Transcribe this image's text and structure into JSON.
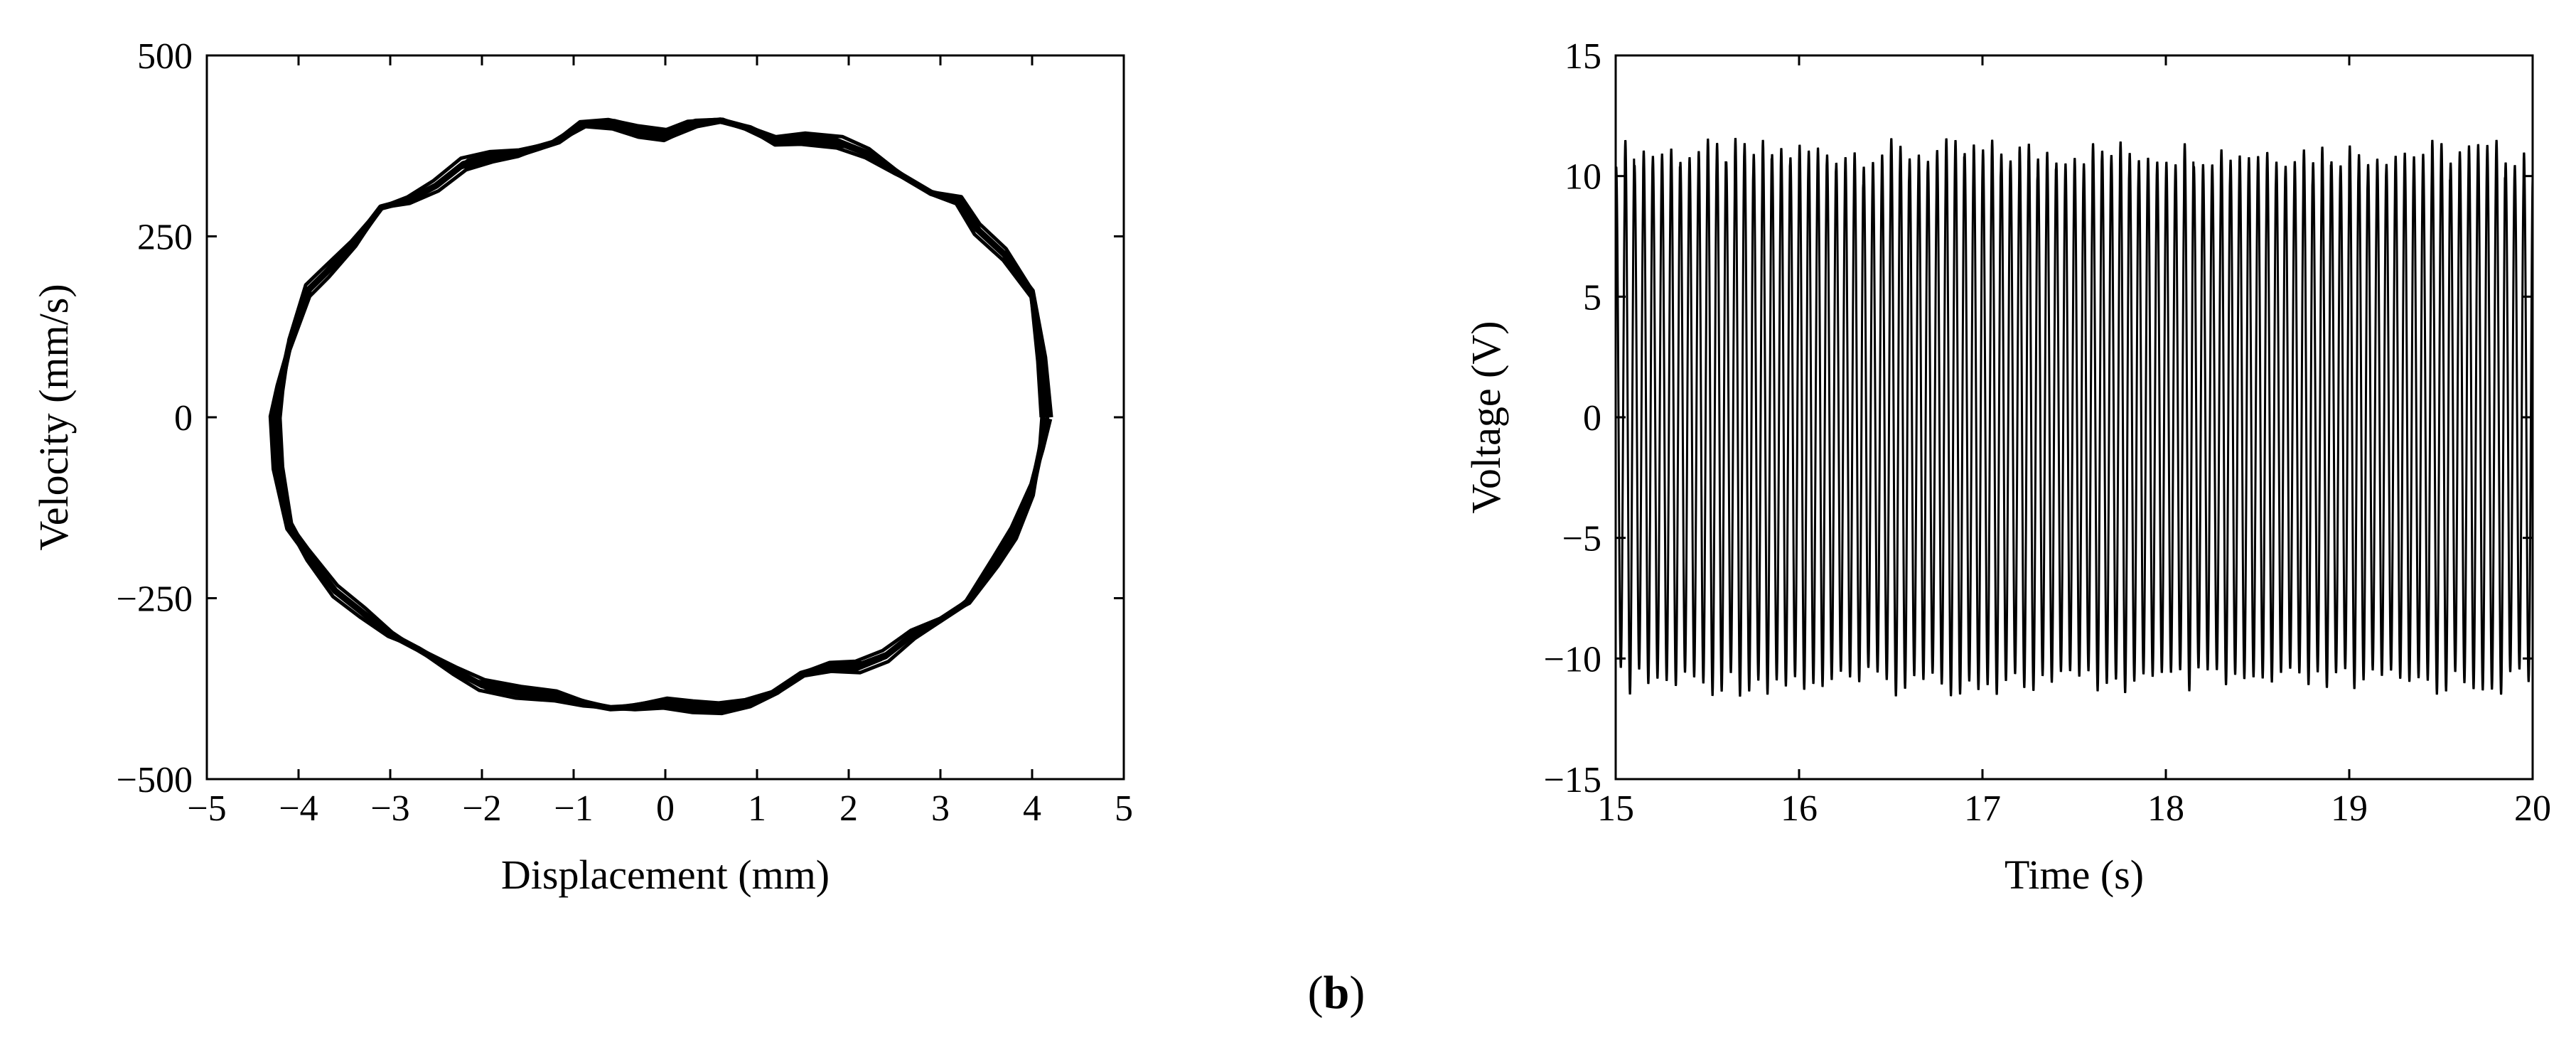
{
  "panel_label_parts": [
    "(",
    "b",
    ")"
  ],
  "chart_data": [
    {
      "type": "line",
      "xlabel": "Displacement (mm)",
      "ylabel": "Velocity (mm/s)",
      "xlim": [
        -5,
        5
      ],
      "ylim": [
        -500,
        500
      ],
      "xticks": [
        -5,
        -4,
        -3,
        -2,
        -1,
        0,
        1,
        2,
        3,
        4,
        5
      ],
      "yticks": [
        -500,
        -250,
        0,
        250,
        500
      ],
      "xtick_labels": [
        "−5",
        "−4",
        "−3",
        "−2",
        "−1",
        "0",
        "1",
        "2",
        "3",
        "4",
        "5"
      ],
      "ytick_labels": [
        "−500",
        "−250",
        "0",
        "250",
        "500"
      ],
      "grid": false,
      "series": [
        {
          "color": "#000000",
          "x": [
            4.15,
            4.1,
            4.0,
            3.7,
            3.4,
            3.2,
            2.9,
            2.5,
            2.2,
            1.9,
            1.5,
            1.2,
            0.9,
            0.6,
            0.3,
            0.0,
            -0.3,
            -0.6,
            -0.9,
            -1.2,
            -1.6,
            -1.9,
            -2.2,
            -2.5,
            -2.8,
            -3.1,
            -3.4,
            -3.7,
            -3.9,
            -4.1,
            -4.2,
            -4.25,
            -4.22,
            -4.1,
            -3.9,
            -3.6,
            -3.3,
            -3.0,
            -2.7,
            -2.3,
            -2.0,
            -1.6,
            -1.2,
            -0.9,
            -0.6,
            -0.3,
            0.0,
            0.3,
            0.6,
            0.9,
            1.2,
            1.5,
            1.8,
            2.1,
            2.4,
            2.7,
            3.0,
            3.3,
            3.6,
            3.8,
            4.0,
            4.1,
            4.15
          ],
          "y": [
            0,
            80,
            170,
            225,
            260,
            300,
            310,
            340,
            365,
            380,
            385,
            382,
            400,
            410,
            405,
            390,
            395,
            405,
            405,
            380,
            365,
            360,
            350,
            320,
            300,
            290,
            240,
            200,
            175,
            100,
            40,
            0,
            -70,
            -150,
            -190,
            -240,
            -270,
            -300,
            -320,
            -350,
            -370,
            -380,
            -385,
            -395,
            -402,
            -400,
            -395,
            -400,
            -402,
            -395,
            -380,
            -355,
            -345,
            -345,
            -330,
            -300,
            -280,
            -255,
            -200,
            -160,
            -100,
            -40,
            0
          ]
        }
      ]
    },
    {
      "type": "line",
      "xlabel": "Time (s)",
      "ylabel": "Voltage (V)",
      "xlim": [
        15,
        20
      ],
      "ylim": [
        -15,
        15
      ],
      "xticks": [
        15,
        16,
        17,
        18,
        19,
        20
      ],
      "yticks": [
        -15,
        -10,
        -5,
        0,
        5,
        10,
        15
      ],
      "xtick_labels": [
        "15",
        "16",
        "17",
        "18",
        "19",
        "20"
      ],
      "ytick_labels": [
        "−15",
        "−10",
        "−5",
        "0",
        "5",
        "10",
        "15"
      ],
      "grid": false,
      "series": [
        {
          "color": "#000000",
          "waveform": "sine",
          "frequency_hz": 20,
          "amplitude_V": 11,
          "amplitude_range_V": [
            10.6,
            11.8
          ]
        }
      ]
    }
  ]
}
